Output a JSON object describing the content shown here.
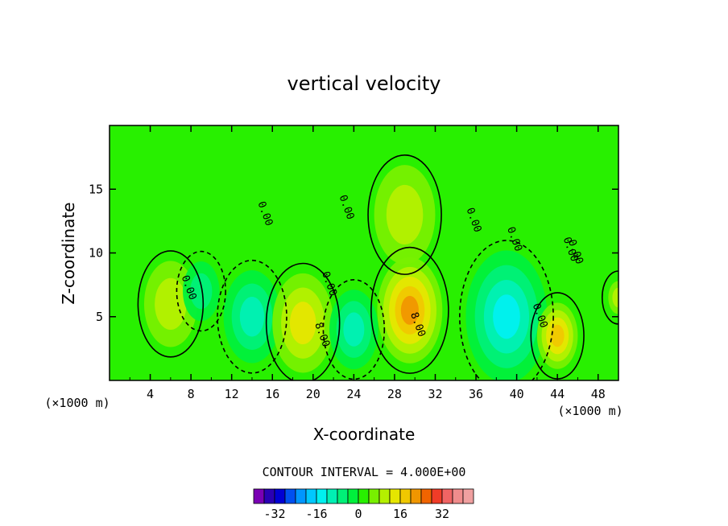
{
  "chart_data": {
    "type": "contour",
    "title": "vertical velocity",
    "xlabel": "X-coordinate",
    "ylabel": "Z-coordinate",
    "x_unit": "(×1000 m)",
    "y_unit": "(×1000 m)",
    "xlim": [
      0,
      50
    ],
    "ylim": [
      0,
      20
    ],
    "x_ticks": [
      "4",
      "8",
      "12",
      "16",
      "20",
      "24",
      "28",
      "32",
      "36",
      "40",
      "44",
      "48"
    ],
    "y_ticks": [
      "5",
      "10",
      "15"
    ],
    "contour_interval_text": "CONTOUR INTERVAL = 4.000E+00",
    "contour_interval": 4,
    "contour_labels": [
      "0.00",
      "0.00",
      "0.00",
      "0.00",
      "0.00",
      "0.00",
      "0.00",
      "0.00",
      "8.00",
      "8.00",
      "0.00"
    ],
    "colorbar": {
      "tick_labels": [
        "-32",
        "-16",
        "0",
        "16",
        "32"
      ],
      "tick_values": [
        -32,
        -16,
        0,
        16,
        32
      ],
      "colors": [
        "#7a00b4",
        "#2a00b4",
        "#0000d4",
        "#0050f0",
        "#0096ff",
        "#00c8ff",
        "#00f0f0",
        "#00f0b4",
        "#00f078",
        "#00f03c",
        "#28f000",
        "#78f000",
        "#b4f000",
        "#e6e600",
        "#f0c800",
        "#f09600",
        "#f06400",
        "#f03c28",
        "#f06464",
        "#f08c8c",
        "#f0a0a0"
      ]
    },
    "field": [
      {
        "x": 6,
        "z": 6,
        "w": 6,
        "r": 2.6,
        "v": "warm"
      },
      {
        "x": 9,
        "z": 7,
        "w": -6,
        "r": 1.8
      },
      {
        "x": 14,
        "z": 5,
        "w": -12,
        "r": 2.8
      },
      {
        "x": 19,
        "z": 4.5,
        "w": 12,
        "r": 3.0
      },
      {
        "x": 24,
        "z": 4,
        "w": -12,
        "r": 2.4
      },
      {
        "x": 29.5,
        "z": 5.5,
        "w": 20,
        "r": 3.2
      },
      {
        "x": 29,
        "z": 13,
        "w": 6,
        "r": 3.0
      },
      {
        "x": 39,
        "z": 5,
        "w": -16,
        "r": 4.0
      },
      {
        "x": 44,
        "z": 3.5,
        "w": 14,
        "r": 2.0
      },
      {
        "x": 50,
        "z": 6.5,
        "w": 8,
        "r": 1.0
      }
    ]
  }
}
